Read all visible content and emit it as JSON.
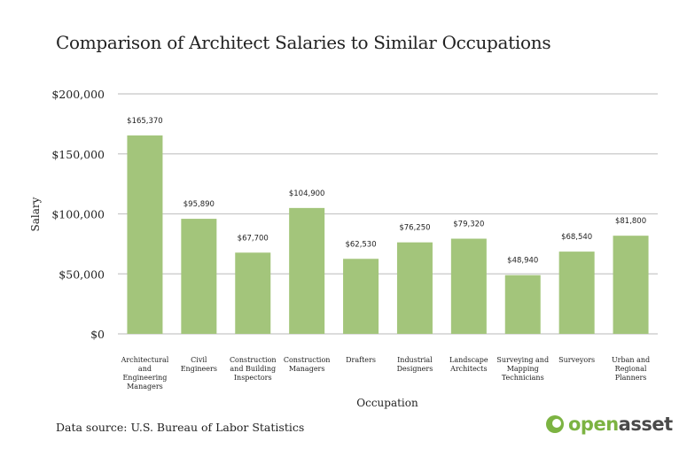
{
  "chart_data": {
    "type": "bar",
    "title": "Comparison of Architect Salaries to Similar Occupations",
    "xlabel": "Occupation",
    "ylabel": "Salary",
    "ylim": [
      0,
      200000
    ],
    "yticks": [
      0,
      50000,
      100000,
      150000,
      200000
    ],
    "ytick_labels": [
      "$0",
      "$50,000",
      "$100,000",
      "$150,000",
      "$200,000"
    ],
    "grid": true,
    "bar_color": "#a3c57b",
    "categories": [
      [
        "Architectural",
        "and",
        "Engineering",
        "Managers"
      ],
      [
        "Civil",
        "Engineers"
      ],
      [
        "Construction",
        "and Building",
        "Inspectors"
      ],
      [
        "Construction",
        "Managers"
      ],
      [
        "Drafters"
      ],
      [
        "Industrial",
        "Designers"
      ],
      [
        "Landscape",
        "Architects"
      ],
      [
        "Surveying and",
        "Mapping",
        "Technicians"
      ],
      [
        "Surveyors"
      ],
      [
        "Urban and",
        "Regional",
        "Planners"
      ]
    ],
    "values": [
      165370,
      95890,
      67700,
      104900,
      62530,
      76250,
      79320,
      48940,
      68540,
      81800
    ],
    "data_labels": [
      "$165,370",
      "$95,890",
      "$67,700",
      "$104,900",
      "$62,530",
      "$76,250",
      "$79,320",
      "$48,940",
      "$68,540",
      "$81,800"
    ]
  },
  "footer": {
    "source": "Data source: U.S. Bureau of Labor Statistics",
    "logo_text_1": "open",
    "logo_text_2": "asset",
    "logo_color": "#7cb342"
  }
}
